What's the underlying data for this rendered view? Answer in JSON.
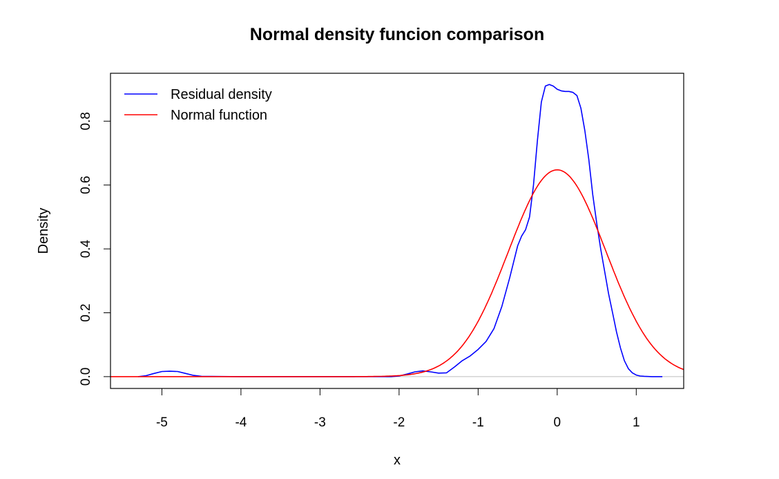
{
  "chart_data": {
    "type": "line",
    "title": "Normal density funcion comparison",
    "xlabel": "x",
    "ylabel": "Density",
    "xlim": [
      -5.65,
      1.6
    ],
    "ylim": [
      -0.037,
      0.95
    ],
    "xticks": [
      -5,
      -4,
      -3,
      -2,
      -1,
      0,
      1
    ],
    "xtick_labels": [
      "-5",
      "-4",
      "-3",
      "-2",
      "-1",
      "0",
      "1"
    ],
    "yticks": [
      0.0,
      0.2,
      0.4,
      0.6,
      0.8
    ],
    "ytick_labels": [
      "0.0",
      "0.2",
      "0.4",
      "0.6",
      "0.8"
    ],
    "grid": false,
    "legend": {
      "position": "top-left",
      "entries": [
        "Residual density",
        "Normal function"
      ]
    },
    "baseline": {
      "y": 0,
      "color": "#bebebe"
    },
    "series": [
      {
        "name": "Residual density",
        "color": "#0000ff",
        "x": [
          -5.3,
          -5.2,
          -5.1,
          -5.0,
          -4.9,
          -4.8,
          -4.7,
          -4.6,
          -4.5,
          -4.0,
          -3.0,
          -2.5,
          -2.1,
          -2.0,
          -1.9,
          -1.8,
          -1.7,
          -1.6,
          -1.5,
          -1.4,
          -1.3,
          -1.2,
          -1.1,
          -1.0,
          -0.9,
          -0.8,
          -0.7,
          -0.6,
          -0.5,
          -0.45,
          -0.4,
          -0.35,
          -0.3,
          -0.25,
          -0.2,
          -0.15,
          -0.1,
          -0.05,
          0.0,
          0.05,
          0.1,
          0.15,
          0.2,
          0.25,
          0.3,
          0.35,
          0.4,
          0.45,
          0.5,
          0.55,
          0.6,
          0.65,
          0.7,
          0.75,
          0.8,
          0.85,
          0.9,
          0.95,
          1.0,
          1.05,
          1.1,
          1.2,
          1.33
        ],
        "values": [
          0.0,
          0.003,
          0.01,
          0.016,
          0.017,
          0.016,
          0.01,
          0.004,
          0.001,
          0.0,
          0.0,
          0.0,
          0.0,
          0.002,
          0.008,
          0.015,
          0.018,
          0.015,
          0.011,
          0.012,
          0.03,
          0.05,
          0.065,
          0.085,
          0.11,
          0.15,
          0.22,
          0.31,
          0.41,
          0.44,
          0.46,
          0.5,
          0.6,
          0.74,
          0.86,
          0.91,
          0.915,
          0.91,
          0.9,
          0.895,
          0.893,
          0.893,
          0.89,
          0.88,
          0.84,
          0.77,
          0.68,
          0.57,
          0.48,
          0.4,
          0.33,
          0.26,
          0.2,
          0.14,
          0.09,
          0.05,
          0.025,
          0.012,
          0.005,
          0.002,
          0.001,
          0.0,
          0.0
        ]
      },
      {
        "name": "Normal function",
        "color": "#ff0000",
        "mean": 0.0,
        "sd": 0.616,
        "x_range": [
          -5.65,
          1.6
        ]
      }
    ]
  }
}
